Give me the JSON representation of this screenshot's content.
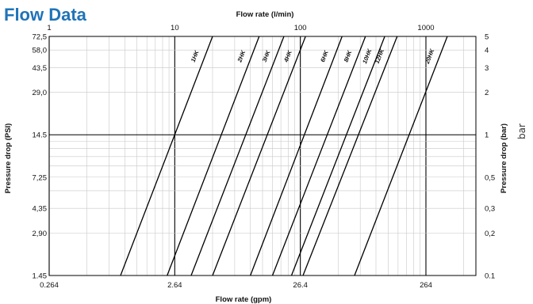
{
  "page_title": "Flow Data",
  "side_note": "bar",
  "colors": {
    "title": "#1f74b8",
    "grid_minor": "#c8c8c8",
    "grid_major": "#000000",
    "line": "#000000"
  },
  "chart_data": {
    "type": "line",
    "x_scale": "log",
    "y_scale": "log",
    "grid": true,
    "x_top": {
      "label": "Flow rate (l/min)",
      "range": [
        1,
        2500
      ],
      "ticks": [
        {
          "value": 1,
          "label": "1"
        },
        {
          "value": 10,
          "label": "10"
        },
        {
          "value": 100,
          "label": "100"
        },
        {
          "value": 1000,
          "label": "1000"
        }
      ]
    },
    "x_bottom": {
      "label": "Flow rate (gpm)",
      "ticks": [
        {
          "value": 1,
          "label": "0.264"
        },
        {
          "value": 10,
          "label": "2.64"
        },
        {
          "value": 100,
          "label": "26.4"
        },
        {
          "value": 1000,
          "label": "264"
        }
      ]
    },
    "y_left": {
      "label": "Pressure drop (PSI)",
      "range": [
        0.1,
        5
      ],
      "ticks": [
        {
          "value": 5,
          "label": "72,5"
        },
        {
          "value": 4,
          "label": "58,0"
        },
        {
          "value": 3,
          "label": "43,5"
        },
        {
          "value": 2,
          "label": "29,0"
        },
        {
          "value": 1,
          "label": "14.5"
        },
        {
          "value": 0.5,
          "label": "7,25"
        },
        {
          "value": 0.3,
          "label": "4,35"
        },
        {
          "value": 0.2,
          "label": "2,90"
        },
        {
          "value": 0.1,
          "label": "1.45"
        }
      ]
    },
    "y_right": {
      "label": "Pressure drop (bar)",
      "ticks": [
        {
          "value": 5,
          "label": "5"
        },
        {
          "value": 4,
          "label": "4"
        },
        {
          "value": 3,
          "label": "3"
        },
        {
          "value": 2,
          "label": "2"
        },
        {
          "value": 1,
          "label": "1"
        },
        {
          "value": 0.5,
          "label": "0,5"
        },
        {
          "value": 0.3,
          "label": "0,3"
        },
        {
          "value": 0.2,
          "label": "0,2"
        },
        {
          "value": 0.1,
          "label": "0.1"
        }
      ]
    },
    "series": [
      {
        "name": "1HK",
        "points": [
          [
            3.7,
            0.1
          ],
          [
            20,
            5
          ]
        ]
      },
      {
        "name": "2HK",
        "points": [
          [
            8.7,
            0.1
          ],
          [
            47,
            5
          ]
        ]
      },
      {
        "name": "3HK",
        "points": [
          [
            13.5,
            0.1
          ],
          [
            74,
            5
          ]
        ]
      },
      {
        "name": "4HK",
        "points": [
          [
            20,
            0.1
          ],
          [
            110,
            5
          ]
        ]
      },
      {
        "name": "6HK",
        "points": [
          [
            40,
            0.1
          ],
          [
            215,
            5
          ]
        ]
      },
      {
        "name": "8HK",
        "points": [
          [
            60,
            0.1
          ],
          [
            330,
            5
          ]
        ]
      },
      {
        "name": "10HK",
        "points": [
          [
            85,
            0.1
          ],
          [
            470,
            5
          ]
        ]
      },
      {
        "name": "12HK",
        "points": [
          [
            105,
            0.1
          ],
          [
            590,
            5
          ]
        ]
      },
      {
        "name": "20HK",
        "points": [
          [
            270,
            0.1
          ],
          [
            1480,
            5
          ]
        ]
      }
    ]
  }
}
